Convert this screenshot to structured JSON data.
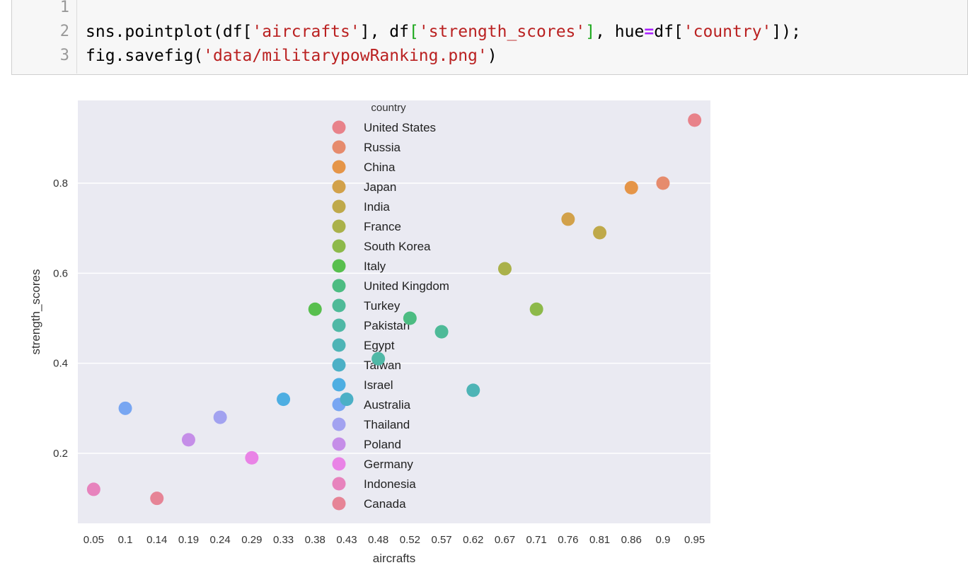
{
  "code": {
    "line_numbers": [
      "1",
      "2",
      "3"
    ],
    "line2": {
      "p1": "sns.pointplot(df[",
      "s1": "'aircrafts'",
      "p2": "], df",
      "b1": "[",
      "s2": "'strength_scores'",
      "b2": "]",
      "p3": ", hue",
      "op": "=",
      "p4": "df[",
      "s3": "'country'",
      "p5": "]);"
    },
    "line3": {
      "p1": "fig.savefig(",
      "s1": "'data/militarypowRanking.png'",
      "p2": ")"
    }
  },
  "chart_data": {
    "type": "scatter",
    "xlabel": "aircrafts",
    "ylabel": "strength_scores",
    "categories": [
      "0.05",
      "0.1",
      "0.14",
      "0.19",
      "0.24",
      "0.29",
      "0.33",
      "0.38",
      "0.43",
      "0.48",
      "0.52",
      "0.57",
      "0.62",
      "0.67",
      "0.71",
      "0.76",
      "0.81",
      "0.86",
      "0.9",
      "0.95"
    ],
    "yticks": [
      0.2,
      0.4,
      0.6,
      0.8
    ],
    "ylim": [
      0.06,
      0.97
    ],
    "grid": true,
    "legend_title": "country",
    "legend_placement": "top-center",
    "series": [
      {
        "name": "United States",
        "color": "#e8828a",
        "x": "0.95",
        "y": 0.94
      },
      {
        "name": "Russia",
        "color": "#e68b6d",
        "x": "0.9",
        "y": 0.8
      },
      {
        "name": "China",
        "color": "#e59548",
        "x": "0.86",
        "y": 0.79
      },
      {
        "name": "Japan",
        "color": "#d2a14a",
        "x": "0.76",
        "y": 0.72
      },
      {
        "name": "India",
        "color": "#bfa94a",
        "x": "0.81",
        "y": 0.69
      },
      {
        "name": "France",
        "color": "#aab14a",
        "x": "0.67",
        "y": 0.61
      },
      {
        "name": "South Korea",
        "color": "#8db94a",
        "x": "0.71",
        "y": 0.52
      },
      {
        "name": "Italy",
        "color": "#58bf4e",
        "x": "0.38",
        "y": 0.52
      },
      {
        "name": "United Kingdom",
        "color": "#4cbc82",
        "x": "0.52",
        "y": 0.5
      },
      {
        "name": "Turkey",
        "color": "#4eba98",
        "x": "0.57",
        "y": 0.47
      },
      {
        "name": "Pakistan",
        "color": "#4fb8a6",
        "x": "0.48",
        "y": 0.41
      },
      {
        "name": "Egypt",
        "color": "#4eb4b6",
        "x": "0.62",
        "y": 0.34
      },
      {
        "name": "Taiwan",
        "color": "#4cb0c6",
        "x": "0.43",
        "y": 0.32
      },
      {
        "name": "Israel",
        "color": "#4eaee2",
        "x": "0.33",
        "y": 0.32
      },
      {
        "name": "Australia",
        "color": "#78a6f2",
        "x": "0.1",
        "y": 0.3
      },
      {
        "name": "Thailand",
        "color": "#a2a2f0",
        "x": "0.24",
        "y": 0.28
      },
      {
        "name": "Poland",
        "color": "#c58ee8",
        "x": "0.19",
        "y": 0.23
      },
      {
        "name": "Germany",
        "color": "#e983e6",
        "x": "0.29",
        "y": 0.19
      },
      {
        "name": "Indonesia",
        "color": "#e783bd",
        "x": "0.05",
        "y": 0.12
      },
      {
        "name": "Canada",
        "color": "#e68496",
        "x": "0.14",
        "y": 0.1
      }
    ]
  }
}
